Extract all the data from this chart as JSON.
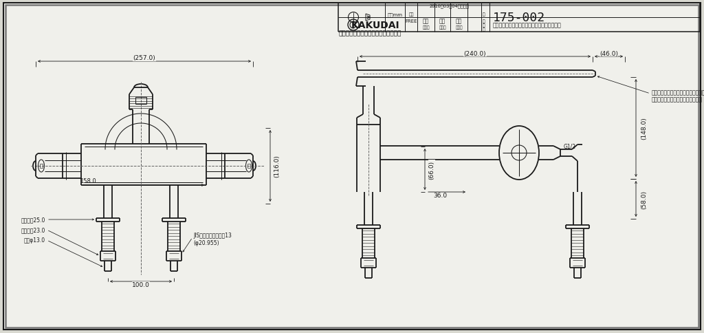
{
  "bg_color": "#d8d8d0",
  "drawing_bg": "#f0f0eb",
  "line_color": "#1a1a1a",
  "dim_color": "#1a1a1a",
  "title": "175-002",
  "tolerance_text": "FREE",
  "brand": "KAKUDAI",
  "dim_257": "(257.0)",
  "dim_240": "(240.0)",
  "dim_46": "(46.0)",
  "dim_116": "(116.0)",
  "dim_148": "(148.0)",
  "dim_58": "(58.0)",
  "dim_66": "(66.0)",
  "dim_36": "36.0",
  "dim_158": "158.0",
  "dim_100": "100.0",
  "note_phi": "(φ20.955)",
  "note_g12": "G1/2"
}
